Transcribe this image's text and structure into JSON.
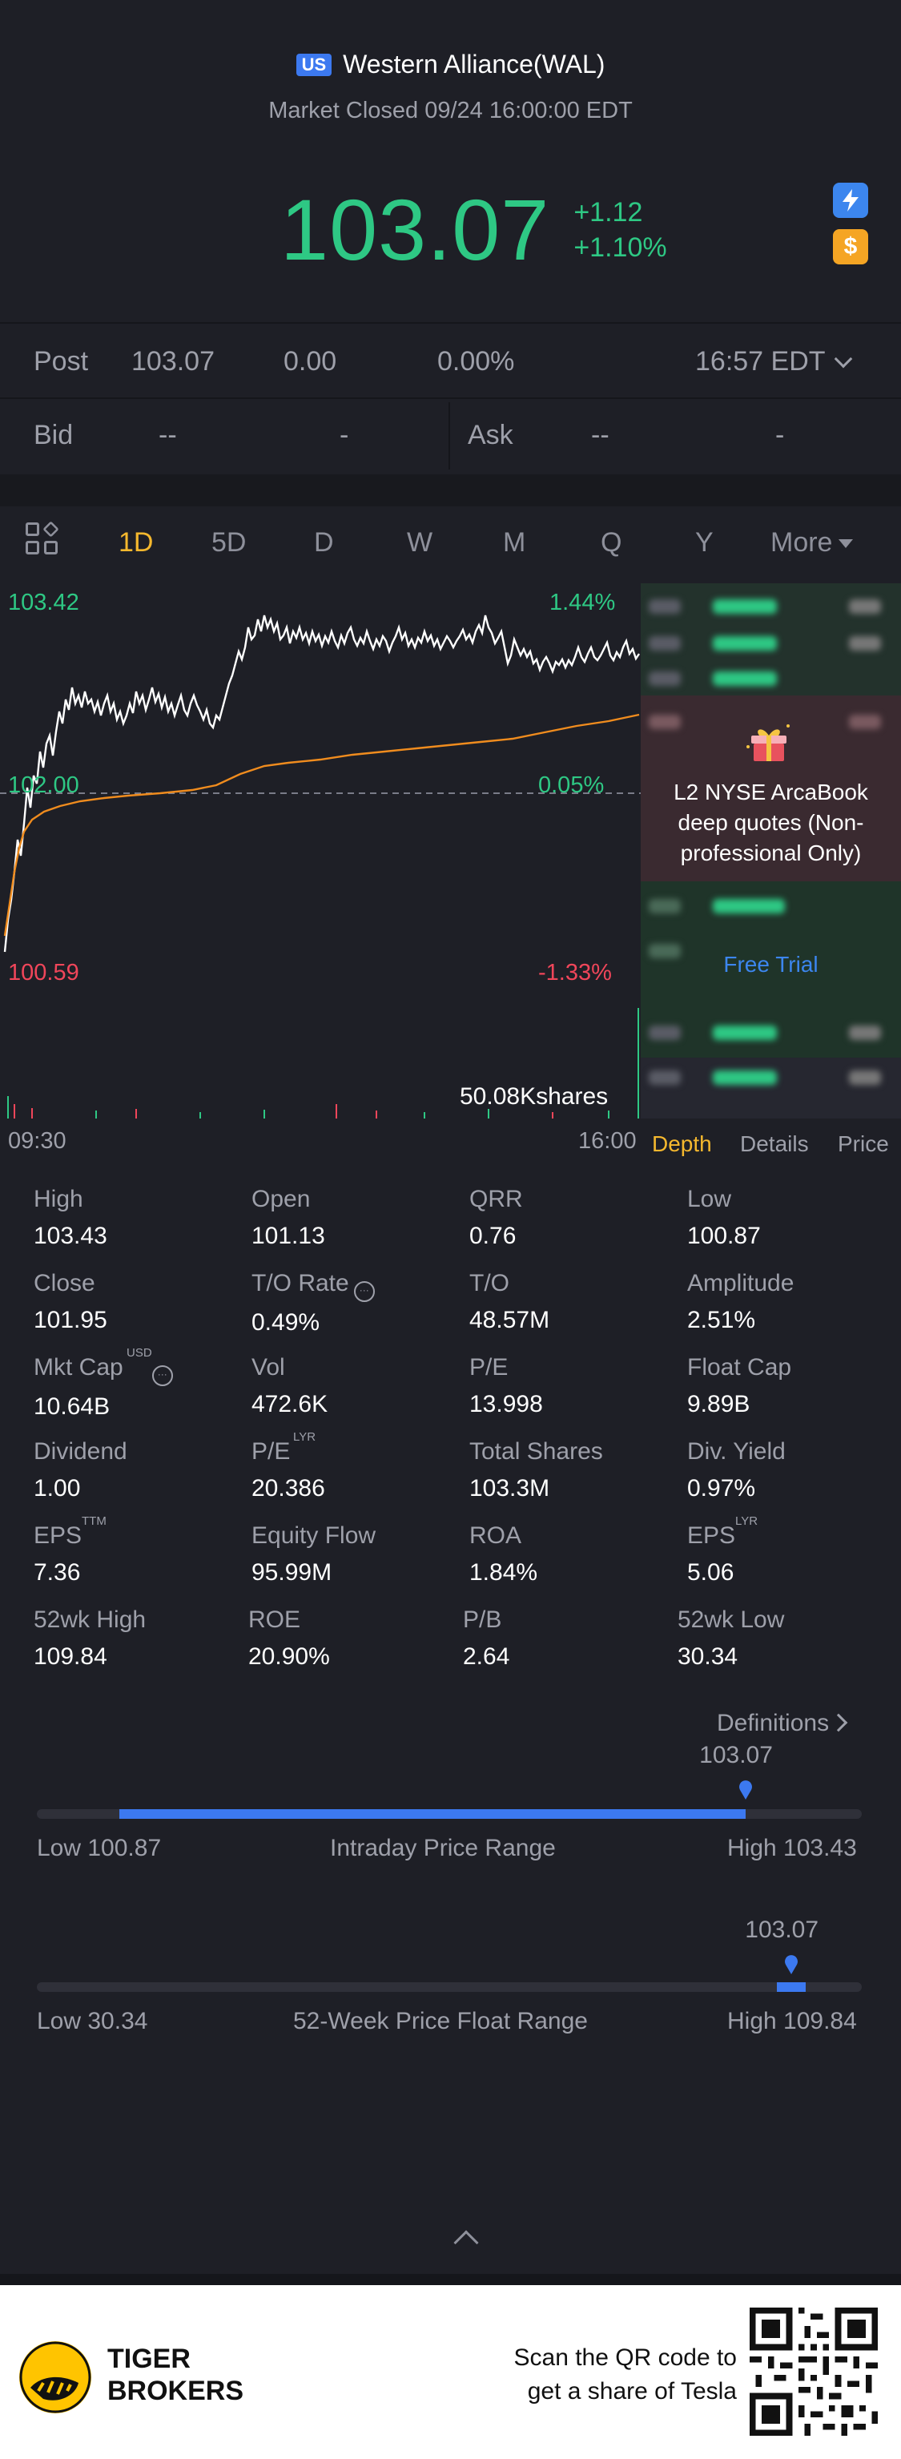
{
  "header": {
    "market_badge": "US",
    "stock_name": "Western Alliance(WAL)",
    "market_status": "Market Closed 09/24 16:00:00 EDT",
    "price": "103.07",
    "change": "+1.12",
    "change_pct": "+1.10%"
  },
  "post": {
    "label": "Post",
    "price": "103.07",
    "change": "0.00",
    "change_pct": "0.00%",
    "time": "16:57 EDT"
  },
  "bid_ask": {
    "bid_label": "Bid",
    "bid_price": "--",
    "bid_size": "-",
    "ask_label": "Ask",
    "ask_price": "--",
    "ask_size": "-"
  },
  "tabs": {
    "items": [
      "1D",
      "5D",
      "D",
      "W",
      "M",
      "Q",
      "Y",
      "More"
    ],
    "active": "1D"
  },
  "chart": {
    "high_price": "103.42",
    "high_pct": "1.44%",
    "ref_price": "102.00",
    "ref_pct": "0.05%",
    "low_price": "100.59",
    "low_pct": "-1.33%",
    "volume_label": "50.08Kshares",
    "time_start": "09:30",
    "time_end": "16:00"
  },
  "l2": {
    "text": "L2 NYSE ArcaBook deep quotes (Non-professional Only)",
    "cta": "Free Trial"
  },
  "side_tabs": {
    "depth": "Depth",
    "details": "Details",
    "price": "Price"
  },
  "stats": [
    {
      "label": "High",
      "value": "103.43"
    },
    {
      "label": "Open",
      "value": "101.13"
    },
    {
      "label": "QRR",
      "value": "0.76"
    },
    {
      "label": "Low",
      "value": "100.87"
    },
    {
      "label": "Close",
      "value": "101.95"
    },
    {
      "label": "T/O Rate",
      "value": "0.49%"
    },
    {
      "label": "T/O",
      "value": "48.57M"
    },
    {
      "label": "Amplitude",
      "value": "2.51%"
    },
    {
      "label": "Mkt Cap",
      "value": "10.64B",
      "sup": "USD"
    },
    {
      "label": "Vol",
      "value": "472.6K"
    },
    {
      "label": "P/E",
      "value": "13.998"
    },
    {
      "label": "Float Cap",
      "value": "9.89B"
    },
    {
      "label": "Dividend",
      "value": "1.00"
    },
    {
      "label": "P/E",
      "value": "20.386",
      "sup": "LYR"
    },
    {
      "label": "Total Shares",
      "value": "103.3M"
    },
    {
      "label": "Div. Yield",
      "value": "0.97%"
    },
    {
      "label": "EPS",
      "value": "7.36",
      "sup": "TTM"
    },
    {
      "label": "Equity Flow",
      "value": "95.99M"
    },
    {
      "label": "ROA",
      "value": "1.84%"
    },
    {
      "label": "EPS",
      "value": "5.06",
      "sup": "LYR"
    },
    {
      "label": "52wk High",
      "value": "109.84"
    },
    {
      "label": "ROE",
      "value": "20.90%"
    },
    {
      "label": "P/B",
      "value": "2.64"
    },
    {
      "label": "52wk Low",
      "value": "30.34"
    }
  ],
  "definitions": "Definitions",
  "intraday_range": {
    "current": "103.07",
    "low_label": "Low 100.87",
    "title": "Intraday Price Range",
    "high_label": "High 103.43",
    "low": 100.87,
    "high": 103.43,
    "value": 103.07
  },
  "week52_range": {
    "current": "103.07",
    "low_label": "Low 30.34",
    "title": "52-Week Price Float Range",
    "high_label": "High 109.84",
    "low": 30.34,
    "high": 109.84,
    "value": 103.07
  },
  "footer": {
    "brand_line1": "TIGER",
    "brand_line2": "BROKERS",
    "scan_line1": "Scan the QR code to",
    "scan_line2": "get a share of Tesla"
  },
  "colors": {
    "up": "#2ec884",
    "down": "#f0465a",
    "accent": "#f5b82e",
    "blue": "#3c79f0",
    "avg_line": "#f08c1e"
  }
}
